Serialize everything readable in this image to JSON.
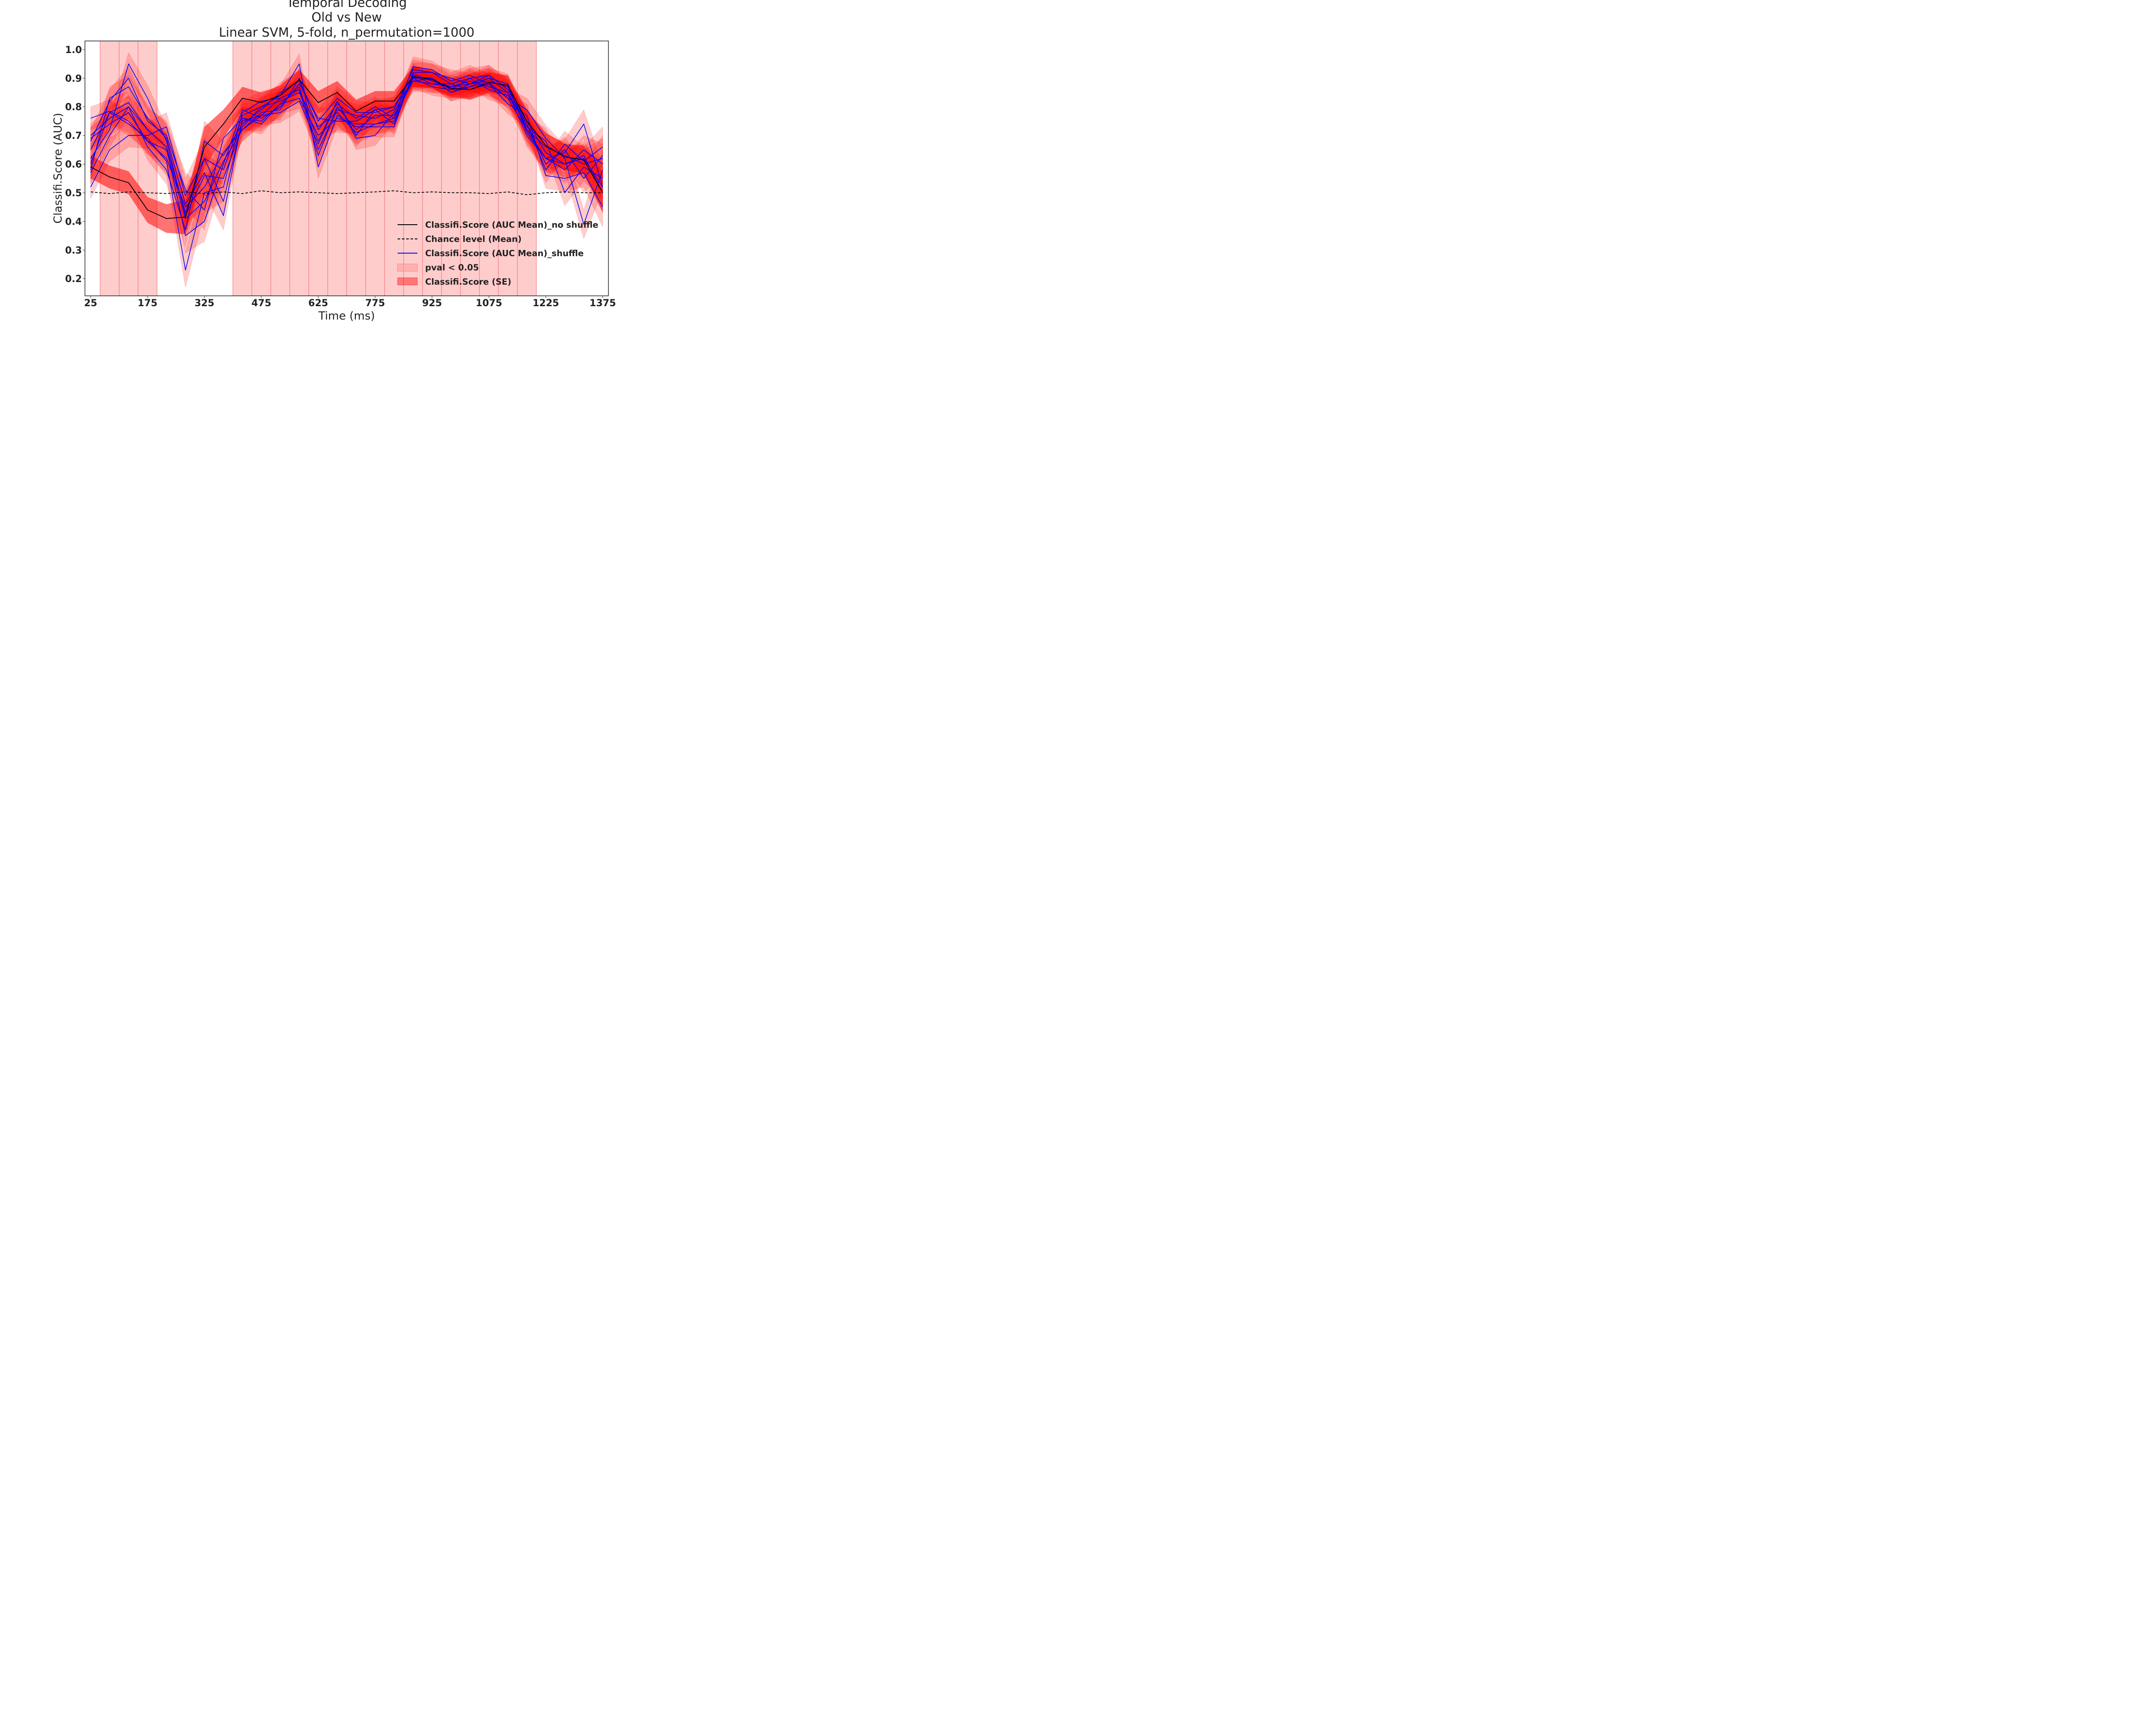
{
  "chart_data": {
    "type": "line",
    "title_lines": [
      "Temporal Decoding",
      "Old vs New",
      "Linear SVM, 5-fold, n_permutation=1000"
    ],
    "xlabel": "Time (ms)",
    "ylabel": "Classifi.Score (AUC)",
    "xlim": [
      10,
      1390
    ],
    "ylim": [
      0.14,
      1.03
    ],
    "x_ticks": [
      25,
      175,
      325,
      475,
      625,
      775,
      925,
      1075,
      1225,
      1375
    ],
    "y_ticks": [
      0.2,
      0.3,
      0.4,
      0.5,
      0.6,
      0.7,
      0.8,
      0.9,
      1.0
    ],
    "y_tick_labels": [
      "0.2",
      "0.3",
      "0.4",
      "0.5",
      "0.6",
      "0.7",
      "0.8",
      "0.9",
      "1.0"
    ],
    "grid": false,
    "legend_position": "lower-right",
    "x": [
      25,
      75,
      125,
      175,
      225,
      275,
      325,
      375,
      425,
      475,
      525,
      575,
      625,
      675,
      725,
      775,
      825,
      875,
      925,
      975,
      1025,
      1075,
      1125,
      1175,
      1225,
      1275,
      1325,
      1375
    ],
    "significant_windows": [
      [
        50,
        200
      ],
      [
        400,
        1200
      ]
    ],
    "significant_window_edges": [
      100,
      150,
      450,
      500,
      550,
      600,
      650,
      700,
      750,
      800,
      850,
      900,
      950,
      1000,
      1050,
      1100,
      1150
    ],
    "series": [
      {
        "name": "Classifi.Score (AUC Mean)_no shuffle",
        "style": "black-solid",
        "values": [
          0.59,
          0.555,
          0.535,
          0.44,
          0.41,
          0.415,
          0.66,
          0.74,
          0.83,
          0.815,
          0.84,
          0.895,
          0.815,
          0.85,
          0.785,
          0.82,
          0.82,
          0.905,
          0.895,
          0.865,
          0.86,
          0.885,
          0.875,
          0.75,
          0.665,
          0.625,
          0.615,
          0.5
        ],
        "se": [
          0.04,
          0.04,
          0.04,
          0.045,
          0.05,
          0.06,
          0.07,
          0.05,
          0.04,
          0.035,
          0.035,
          0.035,
          0.04,
          0.04,
          0.04,
          0.035,
          0.035,
          0.035,
          0.03,
          0.03,
          0.035,
          0.035,
          0.035,
          0.04,
          0.045,
          0.045,
          0.05,
          0.07
        ]
      },
      {
        "name": "Chance level (Mean)",
        "style": "black-dashed",
        "values": [
          0.503,
          0.497,
          0.503,
          0.5,
          0.497,
          0.503,
          0.497,
          0.503,
          0.497,
          0.507,
          0.5,
          0.503,
          0.5,
          0.497,
          0.5,
          0.503,
          0.507,
          0.5,
          0.503,
          0.5,
          0.5,
          0.497,
          0.503,
          0.493,
          0.5,
          0.503,
          0.5,
          0.5
        ]
      },
      {
        "name": "Classifi.Score (AUC Mean)_shuffle",
        "style": "blue-solid",
        "runs": [
          [
            0.6,
            0.78,
            0.815,
            0.72,
            0.66,
            0.43,
            0.62,
            0.47,
            0.75,
            0.77,
            0.83,
            0.86,
            0.68,
            0.82,
            0.7,
            0.79,
            0.74,
            0.915,
            0.89,
            0.87,
            0.88,
            0.9,
            0.85,
            0.7,
            0.62,
            0.6,
            0.63,
            0.5
          ],
          [
            0.76,
            0.785,
            0.75,
            0.68,
            0.62,
            0.45,
            0.52,
            0.64,
            0.72,
            0.78,
            0.79,
            0.9,
            0.72,
            0.81,
            0.76,
            0.8,
            0.76,
            0.905,
            0.9,
            0.86,
            0.87,
            0.885,
            0.83,
            0.72,
            0.66,
            0.63,
            0.6,
            0.62
          ],
          [
            0.68,
            0.82,
            0.9,
            0.75,
            0.7,
            0.51,
            0.44,
            0.69,
            0.76,
            0.75,
            0.81,
            0.87,
            0.65,
            0.79,
            0.77,
            0.76,
            0.79,
            0.93,
            0.92,
            0.88,
            0.9,
            0.86,
            0.84,
            0.74,
            0.6,
            0.65,
            0.55,
            0.63
          ],
          [
            0.52,
            0.65,
            0.7,
            0.7,
            0.73,
            0.49,
            0.62,
            0.58,
            0.77,
            0.8,
            0.82,
            0.85,
            0.73,
            0.78,
            0.71,
            0.74,
            0.75,
            0.9,
            0.9,
            0.85,
            0.88,
            0.91,
            0.86,
            0.75,
            0.64,
            0.6,
            0.62,
            0.52
          ],
          [
            0.62,
            0.72,
            0.95,
            0.83,
            0.68,
            0.42,
            0.56,
            0.55,
            0.73,
            0.8,
            0.84,
            0.95,
            0.59,
            0.77,
            0.73,
            0.73,
            0.73,
            0.92,
            0.92,
            0.9,
            0.88,
            0.89,
            0.87,
            0.72,
            0.62,
            0.58,
            0.65,
            0.6
          ],
          [
            0.7,
            0.76,
            0.8,
            0.72,
            0.66,
            0.35,
            0.4,
            0.6,
            0.79,
            0.76,
            0.8,
            0.88,
            0.76,
            0.75,
            0.75,
            0.79,
            0.8,
            0.91,
            0.88,
            0.88,
            0.86,
            0.88,
            0.81,
            0.77,
            0.56,
            0.55,
            0.57,
            0.45
          ],
          [
            0.65,
            0.78,
            0.74,
            0.69,
            0.61,
            0.23,
            0.5,
            0.52,
            0.78,
            0.82,
            0.83,
            0.86,
            0.63,
            0.8,
            0.72,
            0.77,
            0.77,
            0.89,
            0.88,
            0.87,
            0.89,
            0.87,
            0.85,
            0.73,
            0.68,
            0.5,
            0.59,
            0.55
          ],
          [
            0.57,
            0.7,
            0.8,
            0.66,
            0.58,
            0.37,
            0.68,
            0.63,
            0.74,
            0.79,
            0.85,
            0.89,
            0.75,
            0.83,
            0.78,
            0.78,
            0.8,
            0.89,
            0.9,
            0.85,
            0.87,
            0.9,
            0.88,
            0.71,
            0.62,
            0.64,
            0.74,
            0.52
          ],
          [
            0.58,
            0.83,
            0.87,
            0.76,
            0.69,
            0.46,
            0.57,
            0.42,
            0.76,
            0.74,
            0.81,
            0.83,
            0.7,
            0.76,
            0.74,
            0.74,
            0.76,
            0.94,
            0.93,
            0.89,
            0.91,
            0.88,
            0.83,
            0.79,
            0.69,
            0.62,
            0.39,
            0.58
          ],
          [
            0.69,
            0.74,
            0.78,
            0.68,
            0.65,
            0.41,
            0.47,
            0.61,
            0.72,
            0.77,
            0.78,
            0.82,
            0.67,
            0.82,
            0.69,
            0.7,
            0.78,
            0.9,
            0.87,
            0.86,
            0.9,
            0.91,
            0.86,
            0.74,
            0.58,
            0.67,
            0.61,
            0.66
          ]
        ]
      }
    ],
    "legend": [
      {
        "label": "Classifi.Score (AUC Mean)_no shuffle",
        "kind": "black-line"
      },
      {
        "label": "Chance level (Mean)",
        "kind": "dashed-line"
      },
      {
        "label": "Classifi.Score (AUC Mean)_shuffle",
        "kind": "blue-line"
      },
      {
        "label": "pval < 0.05",
        "kind": "light-patch"
      },
      {
        "label": "Classifi.Score (SE)",
        "kind": "red-patch"
      }
    ],
    "colors": {
      "mean_line": "#000000",
      "chance_line": "#000000",
      "shuffle_line": "#0000ff",
      "significance_fill": "#ff9a9a",
      "se_fill": "#ff0000",
      "window_edge": "#ee6666"
    }
  }
}
